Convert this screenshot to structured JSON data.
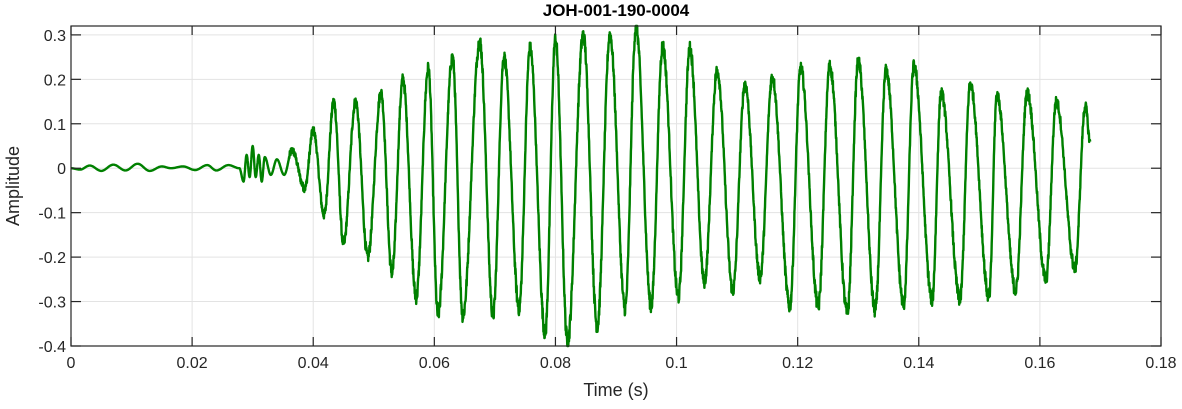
{
  "chart_data": {
    "type": "line",
    "title": "JOH-001-190-0004",
    "xlabel": "Time (s)",
    "ylabel": "Amplitude",
    "xlim": [
      0,
      0.18
    ],
    "ylim": [
      -0.4,
      0.32
    ],
    "grid": true,
    "xticks": [
      0,
      0.02,
      0.04,
      0.06,
      0.08,
      0.1,
      0.12,
      0.14,
      0.16,
      0.18
    ],
    "xtick_labels": [
      "0",
      "0.02",
      "0.04",
      "0.06",
      "0.08",
      "0.1",
      "0.12",
      "0.14",
      "0.16",
      "0.18"
    ],
    "yticks": [
      -0.4,
      -0.3,
      -0.2,
      -0.1,
      0,
      0.1,
      0.2,
      0.3
    ],
    "ytick_labels": [
      "-0.4",
      "-0.3",
      "-0.2",
      "-0.1",
      "0",
      "0.1",
      "0.2",
      "0.3"
    ],
    "series": [
      {
        "name": "Amplitude",
        "color": "#008000",
        "noise_level": 0.015,
        "extrema": [
          [
            0,
            0
          ],
          [
            0.0015,
            -0.003
          ],
          [
            0.0031,
            0.006
          ],
          [
            0.005,
            -0.006
          ],
          [
            0.007,
            0.008
          ],
          [
            0.009,
            -0.005
          ],
          [
            0.011,
            0.01
          ],
          [
            0.013,
            -0.006
          ],
          [
            0.015,
            0.004
          ],
          [
            0.0165,
            0.0
          ],
          [
            0.0185,
            0.004
          ],
          [
            0.0205,
            -0.004
          ],
          [
            0.0225,
            0.007
          ],
          [
            0.024,
            -0.005
          ],
          [
            0.026,
            0.007
          ],
          [
            0.0278,
            0.0
          ],
          [
            0.0285,
            -0.03
          ],
          [
            0.029,
            0.03
          ],
          [
            0.0295,
            -0.02
          ],
          [
            0.03,
            0.05
          ],
          [
            0.0305,
            -0.02
          ],
          [
            0.031,
            0.03
          ],
          [
            0.0315,
            -0.03
          ],
          [
            0.032,
            0.025
          ],
          [
            0.033,
            -0.015
          ],
          [
            0.034,
            0.02
          ],
          [
            0.0352,
            -0.015
          ],
          [
            0.0365,
            0.04
          ],
          [
            0.0386,
            -0.045
          ],
          [
            0.04,
            0.085
          ],
          [
            0.0418,
            -0.105
          ],
          [
            0.0434,
            0.15
          ],
          [
            0.045,
            -0.17
          ],
          [
            0.047,
            0.15
          ],
          [
            0.049,
            -0.2
          ],
          [
            0.0512,
            0.17
          ],
          [
            0.053,
            -0.235
          ],
          [
            0.0548,
            0.2
          ],
          [
            0.057,
            -0.29
          ],
          [
            0.059,
            0.225
          ],
          [
            0.0606,
            -0.33
          ],
          [
            0.063,
            0.25
          ],
          [
            0.0647,
            -0.33
          ],
          [
            0.0675,
            0.285
          ],
          [
            0.0697,
            -0.33
          ],
          [
            0.0715,
            0.25
          ],
          [
            0.074,
            -0.315
          ],
          [
            0.0758,
            0.27
          ],
          [
            0.0783,
            -0.37
          ],
          [
            0.08,
            0.29
          ],
          [
            0.082,
            -0.39
          ],
          [
            0.0846,
            0.3
          ],
          [
            0.0869,
            -0.355
          ],
          [
            0.089,
            0.3
          ],
          [
            0.0915,
            -0.315
          ],
          [
            0.0933,
            0.318
          ],
          [
            0.0958,
            -0.31
          ],
          [
            0.0977,
            0.275
          ],
          [
            0.1003,
            -0.29
          ],
          [
            0.1022,
            0.27
          ],
          [
            0.1046,
            -0.255
          ],
          [
            0.1067,
            0.22
          ],
          [
            0.1093,
            -0.275
          ],
          [
            0.1113,
            0.19
          ],
          [
            0.1138,
            -0.245
          ],
          [
            0.1158,
            0.205
          ],
          [
            0.1187,
            -0.31
          ],
          [
            0.1205,
            0.225
          ],
          [
            0.1234,
            -0.31
          ],
          [
            0.1253,
            0.23
          ],
          [
            0.1282,
            -0.325
          ],
          [
            0.13,
            0.24
          ],
          [
            0.1328,
            -0.32
          ],
          [
            0.1346,
            0.22
          ],
          [
            0.1375,
            -0.305
          ],
          [
            0.1392,
            0.23
          ],
          [
            0.1422,
            -0.295
          ],
          [
            0.1437,
            0.17
          ],
          [
            0.1468,
            -0.295
          ],
          [
            0.1485,
            0.19
          ],
          [
            0.1516,
            -0.29
          ],
          [
            0.1529,
            0.165
          ],
          [
            0.156,
            -0.275
          ],
          [
            0.1579,
            0.17
          ],
          [
            0.161,
            -0.25
          ],
          [
            0.1627,
            0.15
          ],
          [
            0.1658,
            -0.225
          ],
          [
            0.1675,
            0.14
          ],
          [
            0.1683,
            0.06
          ]
        ]
      }
    ]
  }
}
